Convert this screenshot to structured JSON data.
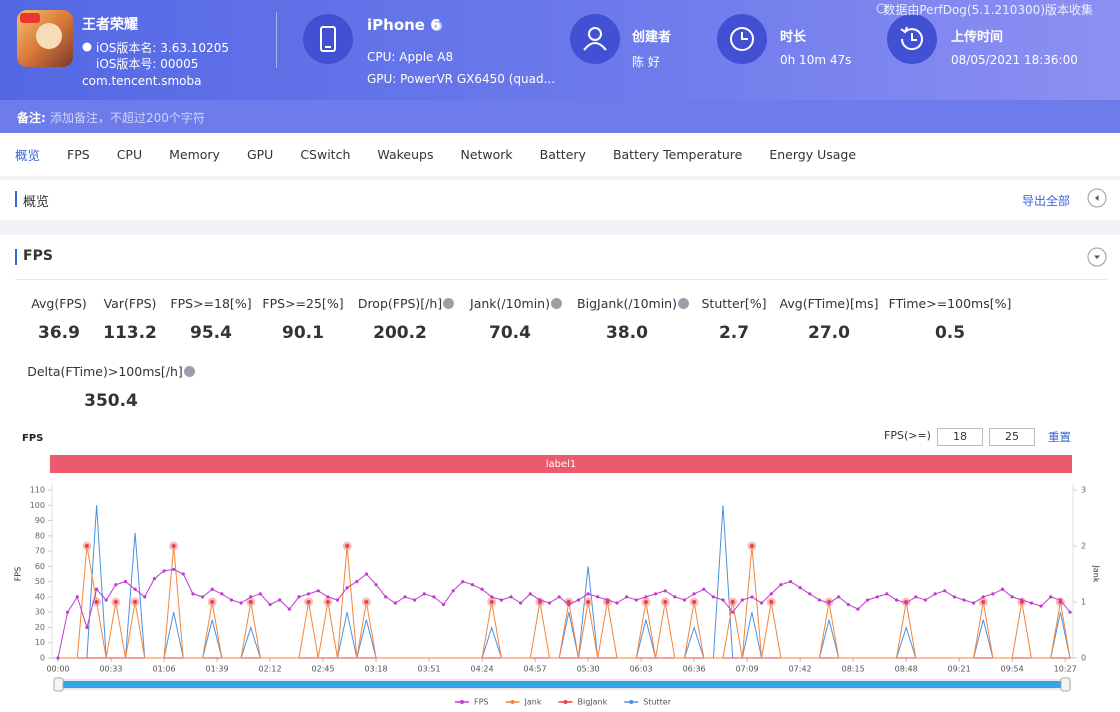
{
  "header": {
    "app_name": "王者荣耀",
    "ios_version_name": "iOS版本名: 3.63.10205",
    "ios_version_code": "iOS版本号: 00005",
    "package": "com.tencent.smoba",
    "device": "iPhone 6",
    "cpu": "CPU: Apple A8",
    "gpu": "GPU: PowerVR GX6450 (quad...",
    "creator_label": "创建者",
    "creator": "陈 好",
    "duration_label": "时长",
    "duration": "0h 10m 47s",
    "upload_label": "上传时间",
    "upload_time": "08/05/2021 18:36:00",
    "source_note": "数据由PerfDog(5.1.210300)版本收集"
  },
  "notes": {
    "label": "备注:",
    "placeholder": "添加备注，不超过200个字符"
  },
  "tabs": [
    "概览",
    "FPS",
    "CPU",
    "Memory",
    "GPU",
    "CSwitch",
    "Wakeups",
    "Network",
    "Battery",
    "Battery Temperature",
    "Energy Usage"
  ],
  "overview": {
    "title": "概览",
    "export": "导出全部"
  },
  "fps_section": {
    "title": "FPS",
    "metrics": [
      {
        "label": "Avg(FPS)",
        "value": "36.9"
      },
      {
        "label": "Var(FPS)",
        "value": "113.2"
      },
      {
        "label": "FPS>=18[%]",
        "value": "95.4"
      },
      {
        "label": "FPS>=25[%]",
        "value": "90.1"
      },
      {
        "label": "Drop(FPS)[/h]",
        "value": "200.2"
      },
      {
        "label": "Jank(/10min)",
        "value": "70.4"
      },
      {
        "label": "BigJank(/10min)",
        "value": "38.0"
      },
      {
        "label": "Stutter[%]",
        "value": "2.7"
      },
      {
        "label": "Avg(FTime)[ms]",
        "value": "27.0"
      },
      {
        "label": "FTime>=100ms[%]",
        "value": "0.5"
      },
      {
        "label": "Delta(FTime)>100ms[/h]",
        "value": "350.4"
      }
    ]
  },
  "chart_controls": {
    "label": "FPS(>=)",
    "thresholds": [
      "18",
      "25"
    ],
    "reset": "重置"
  },
  "chart_data": {
    "type": "line",
    "title": "FPS",
    "y_label": "FPS",
    "y2_label": "Jank",
    "label_band": {
      "text": "label1",
      "color": "#ec5a6e"
    },
    "x": [
      0,
      6,
      12,
      18,
      24,
      30,
      36,
      42,
      48,
      54,
      60,
      66,
      72,
      78,
      84,
      90,
      96,
      102,
      108,
      114,
      120,
      126,
      132,
      138,
      144,
      150,
      156,
      162,
      168,
      174,
      180,
      186,
      192,
      198,
      204,
      210,
      216,
      222,
      228,
      234,
      240,
      246,
      252,
      258,
      264,
      270,
      276,
      282,
      288,
      294,
      300,
      306,
      312,
      318,
      324,
      330,
      336,
      342,
      348,
      354,
      360,
      366,
      372,
      378,
      384,
      390,
      396,
      402,
      408,
      414,
      420,
      426,
      432,
      438,
      444,
      450,
      456,
      462,
      468,
      474,
      480,
      486,
      492,
      498,
      504,
      510,
      516,
      522,
      528,
      534,
      540,
      546,
      552,
      558,
      564,
      570,
      576,
      582,
      588,
      594,
      600,
      606,
      612,
      618,
      624,
      630
    ],
    "xlim": [
      0,
      630
    ],
    "xticks": [
      {
        "value": 0,
        "label": "00:00"
      },
      {
        "value": 33,
        "label": "00:33"
      },
      {
        "value": 66,
        "label": "01:06"
      },
      {
        "value": 99,
        "label": "01:39"
      },
      {
        "value": 132,
        "label": "02:12"
      },
      {
        "value": 165,
        "label": "02:45"
      },
      {
        "value": 198,
        "label": "03:18"
      },
      {
        "value": 231,
        "label": "03:51"
      },
      {
        "value": 264,
        "label": "04:24"
      },
      {
        "value": 297,
        "label": "04:57"
      },
      {
        "value": 330,
        "label": "05:30"
      },
      {
        "value": 363,
        "label": "06:03"
      },
      {
        "value": 396,
        "label": "06:36"
      },
      {
        "value": 429,
        "label": "07:09"
      },
      {
        "value": 462,
        "label": "07:42"
      },
      {
        "value": 495,
        "label": "08:15"
      },
      {
        "value": 528,
        "label": "08:48"
      },
      {
        "value": 561,
        "label": "09:21"
      },
      {
        "value": 594,
        "label": "09:54"
      },
      {
        "value": 627,
        "label": "10:27"
      }
    ],
    "ylim": [
      0,
      110
    ],
    "yticks": [
      0,
      10,
      20,
      30,
      40,
      50,
      60,
      70,
      80,
      90,
      100,
      110
    ],
    "y2lim": [
      0,
      3
    ],
    "y2ticks": [
      0,
      1,
      2,
      3
    ],
    "grid": false,
    "legend": "bottom",
    "series": [
      {
        "name": "FPS",
        "color": "#c03ccc",
        "marker": "dot",
        "values": [
          0,
          30,
          40,
          20,
          45,
          38,
          48,
          50,
          45,
          40,
          52,
          57,
          58,
          55,
          42,
          40,
          45,
          42,
          38,
          36,
          40,
          42,
          35,
          38,
          32,
          40,
          42,
          44,
          40,
          38,
          46,
          50,
          55,
          48,
          40,
          36,
          40,
          38,
          42,
          40,
          35,
          44,
          50,
          48,
          45,
          40,
          38,
          40,
          36,
          42,
          38,
          36,
          40,
          35,
          38,
          42,
          40,
          38,
          36,
          40,
          38,
          40,
          42,
          44,
          40,
          38,
          42,
          45,
          40,
          38,
          30,
          38,
          40,
          36,
          42,
          48,
          50,
          46,
          42,
          38,
          36,
          40,
          35,
          32,
          38,
          40,
          42,
          38,
          36,
          40,
          38,
          42,
          44,
          40,
          38,
          36,
          40,
          42,
          45,
          40,
          38,
          36,
          34,
          40,
          38,
          30
        ]
      },
      {
        "name": "Jank",
        "color": "#f5843a",
        "marker": "halo",
        "axis": "y2",
        "values": [
          0,
          0,
          0,
          2,
          1,
          0,
          1,
          0,
          1,
          0,
          0,
          0,
          2,
          0,
          0,
          0,
          1,
          0,
          0,
          0,
          1,
          0,
          0,
          0,
          0,
          0,
          1,
          0,
          1,
          0,
          2,
          0,
          1,
          0,
          0,
          0,
          0,
          0,
          0,
          0,
          0,
          0,
          0,
          0,
          0,
          1,
          0,
          0,
          0,
          0,
          1,
          0,
          0,
          1,
          0,
          1,
          0,
          1,
          0,
          0,
          0,
          1,
          0,
          1,
          0,
          0,
          1,
          0,
          0,
          0,
          1,
          0,
          2,
          0,
          1,
          0,
          0,
          0,
          0,
          0,
          1,
          0,
          0,
          0,
          0,
          0,
          0,
          0,
          1,
          0,
          0,
          0,
          0,
          0,
          0,
          0,
          1,
          0,
          0,
          0,
          1,
          0,
          0,
          0,
          1,
          0
        ]
      },
      {
        "name": "BigJank",
        "color": "#e8433f",
        "axis": "y2",
        "values": [
          0,
          0,
          0,
          0,
          0,
          0,
          0,
          0,
          0,
          0,
          0,
          0,
          0,
          0,
          0,
          0,
          0,
          0,
          0,
          0,
          0,
          0,
          0,
          0,
          0,
          0,
          0,
          0,
          0,
          0,
          0,
          0,
          0,
          0,
          0,
          0,
          0,
          0,
          0,
          0,
          0,
          0,
          0,
          0,
          0,
          0,
          0,
          0,
          0,
          0,
          0,
          0,
          0,
          0,
          0,
          0,
          0,
          0,
          0,
          0,
          0,
          0,
          0,
          0,
          0,
          0,
          0,
          0,
          0,
          0,
          0,
          0,
          0,
          0,
          0,
          0,
          0,
          0,
          0,
          0,
          0,
          0,
          0,
          0,
          0,
          0,
          0,
          0,
          0,
          0,
          0,
          0,
          0,
          0,
          0,
          0,
          0,
          0,
          0,
          0,
          0,
          0,
          0,
          0,
          0,
          0
        ]
      },
      {
        "name": "Stutter",
        "color": "#4a90e2",
        "values": [
          0,
          0,
          0,
          0,
          100,
          0,
          0,
          0,
          82,
          0,
          0,
          0,
          30,
          0,
          0,
          0,
          25,
          0,
          0,
          0,
          20,
          0,
          0,
          0,
          0,
          0,
          0,
          0,
          0,
          0,
          30,
          0,
          25,
          0,
          0,
          0,
          0,
          0,
          0,
          0,
          0,
          0,
          0,
          0,
          0,
          20,
          0,
          0,
          0,
          0,
          0,
          0,
          0,
          30,
          0,
          60,
          0,
          0,
          0,
          0,
          0,
          25,
          0,
          0,
          0,
          0,
          20,
          0,
          0,
          100,
          0,
          0,
          30,
          0,
          0,
          0,
          0,
          0,
          0,
          0,
          25,
          0,
          0,
          0,
          0,
          0,
          0,
          0,
          20,
          0,
          0,
          0,
          0,
          0,
          0,
          0,
          25,
          0,
          0,
          0,
          0,
          0,
          0,
          0,
          30,
          0
        ]
      }
    ]
  }
}
